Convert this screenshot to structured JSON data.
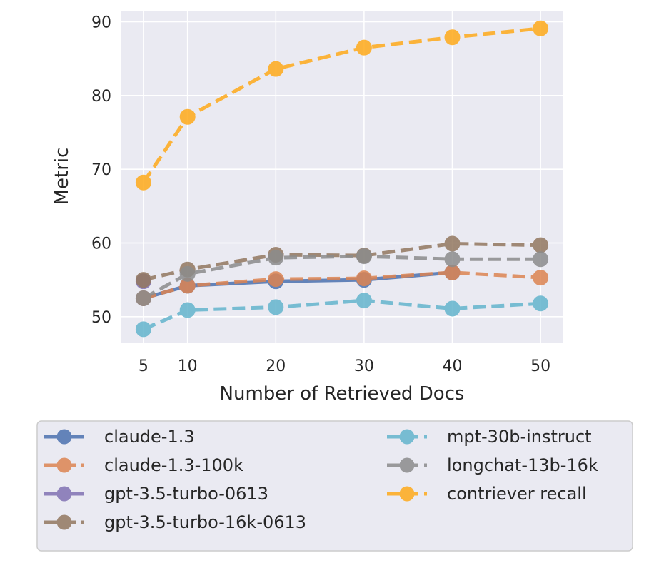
{
  "chart_data": {
    "type": "line",
    "title": "",
    "xlabel": "Number of Retrieved Docs",
    "ylabel": "Metric",
    "xlim": [
      2.5,
      52.5
    ],
    "ylim": [
      46.5,
      91.5
    ],
    "xticks": [
      5,
      10,
      20,
      30,
      40,
      50
    ],
    "yticks": [
      50,
      60,
      70,
      80,
      90
    ],
    "grid": true,
    "legend_position": "below",
    "x": [
      5,
      10,
      20,
      30,
      40,
      50
    ],
    "series": [
      {
        "name": "claude-1.3",
        "color": "#4C72B0",
        "dashed": false,
        "values": [
          52.5,
          54.2,
          54.8,
          55.0,
          56.0,
          null
        ]
      },
      {
        "name": "claude-1.3-100k",
        "color": "#DD8452",
        "dashed": true,
        "values": [
          52.5,
          54.2,
          55.1,
          55.2,
          56.0,
          55.3
        ]
      },
      {
        "name": "gpt-3.5-turbo-0613",
        "color": "#8172B3",
        "dashed": false,
        "values": [
          54.8,
          null,
          null,
          null,
          null,
          null
        ]
      },
      {
        "name": "gpt-3.5-turbo-16k-0613",
        "color": "#937860",
        "dashed": true,
        "values": [
          55.0,
          56.4,
          58.4,
          58.3,
          59.9,
          59.7
        ]
      },
      {
        "name": "mpt-30b-instruct",
        "color": "#64B5CD",
        "dashed": true,
        "values": [
          48.3,
          50.9,
          51.3,
          52.2,
          51.1,
          51.8
        ]
      },
      {
        "name": "longchat-13b-16k",
        "color": "#8C8C8C",
        "dashed": true,
        "values": [
          52.5,
          55.8,
          58.0,
          58.2,
          57.8,
          57.8
        ]
      },
      {
        "name": "contriever recall",
        "color": "#FFAA1A",
        "dashed": true,
        "values": [
          68.2,
          77.1,
          83.6,
          86.5,
          87.9,
          89.1
        ]
      }
    ]
  }
}
